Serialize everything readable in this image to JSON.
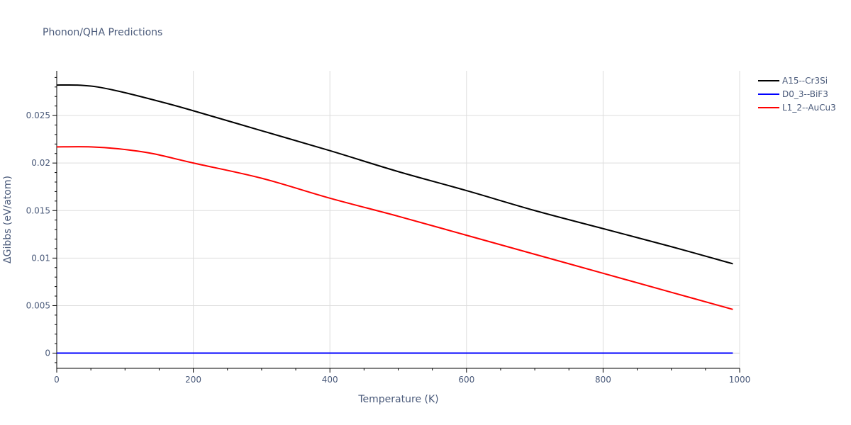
{
  "chart_data": {
    "type": "line",
    "title": "Phonon/QHA Predictions",
    "xlabel": "Temperature (K)",
    "ylabel": "ΔGibbs (eV/atom)",
    "xlim": [
      0,
      1000
    ],
    "ylim": [
      -0.0016,
      0.0297
    ],
    "x_ticks": [
      0,
      200,
      400,
      600,
      800,
      1000
    ],
    "x_tick_labels": [
      "0",
      "200",
      "400",
      "600",
      "800",
      "1000"
    ],
    "y_ticks": [
      0,
      0.005,
      0.01,
      0.015,
      0.02,
      0.025
    ],
    "y_tick_labels": [
      "0",
      "0.005",
      "0.01",
      "0.015",
      "0.02",
      "0.025"
    ],
    "grid": true,
    "legend_position": "top-right",
    "series": [
      {
        "name": "A15--Cr3Si",
        "color": "#000000",
        "x": [
          0,
          30,
          60,
          100,
          160,
          200,
          300,
          400,
          500,
          600,
          700,
          800,
          900,
          990
        ],
        "y": [
          0.0282,
          0.0282,
          0.028,
          0.0274,
          0.0263,
          0.0255,
          0.0234,
          0.0213,
          0.0191,
          0.0171,
          0.015,
          0.0131,
          0.0112,
          0.0094
        ]
      },
      {
        "name": "D0_3--BiF3",
        "color": "#0000ff",
        "x": [
          0,
          990
        ],
        "y": [
          0,
          0
        ]
      },
      {
        "name": "L1_2--AuCu3",
        "color": "#ff0000",
        "x": [
          0,
          50,
          90,
          140,
          200,
          300,
          400,
          500,
          600,
          700,
          800,
          900,
          990
        ],
        "y": [
          0.0217,
          0.0217,
          0.0215,
          0.021,
          0.02,
          0.0184,
          0.0163,
          0.0144,
          0.0124,
          0.0104,
          0.0084,
          0.0064,
          0.0046
        ]
      }
    ]
  }
}
